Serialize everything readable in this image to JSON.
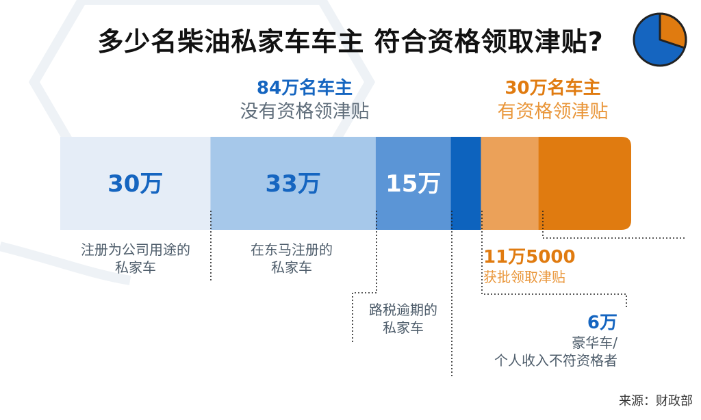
{
  "title": "多少名柴油私家车车主 符合资格领取津贴?",
  "groups": {
    "not_eligible": {
      "count": "84万名车主",
      "desc": "没有资格领津贴",
      "color": "#1565c0"
    },
    "eligible": {
      "count": "30万名车主",
      "desc": "有资格领津贴",
      "color": "#e07b10"
    }
  },
  "chart_data": {
    "type": "bar",
    "orientation": "horizontal-stacked",
    "unit": "万",
    "segments": [
      {
        "label": "30万",
        "value": 30,
        "category": "注册为公司用途的私家车",
        "color": "#e5edf7",
        "text_color": "#1565c0"
      },
      {
        "label": "33万",
        "value": 33,
        "category": "在东马注册的私家车",
        "color": "#a6c8ea",
        "text_color": "#1565c0"
      },
      {
        "label": "15万",
        "value": 15,
        "category": "路税逾期的私家车",
        "color": "#5b95d6",
        "text_color": "#ffffff"
      },
      {
        "label": "",
        "value": 6,
        "category": "豪华车/个人收入不符资格者",
        "color": "#0d63be",
        "text_color": "#ffffff"
      },
      {
        "label": "",
        "value": 11.5,
        "category": "获批领取津贴",
        "color": "#eba159",
        "text_color": "#ffffff"
      },
      {
        "label": "",
        "value": 18.5,
        "category": "",
        "color": "#e07b10",
        "text_color": "#ffffff"
      }
    ]
  },
  "category_labels": {
    "company": {
      "line1": "注册为公司用途的",
      "line2": "私家车"
    },
    "east_my": {
      "line1": "在东马注册的",
      "line2": "私家车"
    },
    "road_tax": {
      "line1": "路税逾期的",
      "line2": "私家车"
    }
  },
  "notes": {
    "approved": {
      "num": "11万5000",
      "txt": "获批领取津贴"
    },
    "luxury": {
      "num": "6万",
      "line1": "豪华车/",
      "line2": "个人收入不符资格者"
    }
  },
  "pie_icon": {
    "blue": "#1565c0",
    "orange": "#e07b10"
  },
  "source": "来源：财政部"
}
